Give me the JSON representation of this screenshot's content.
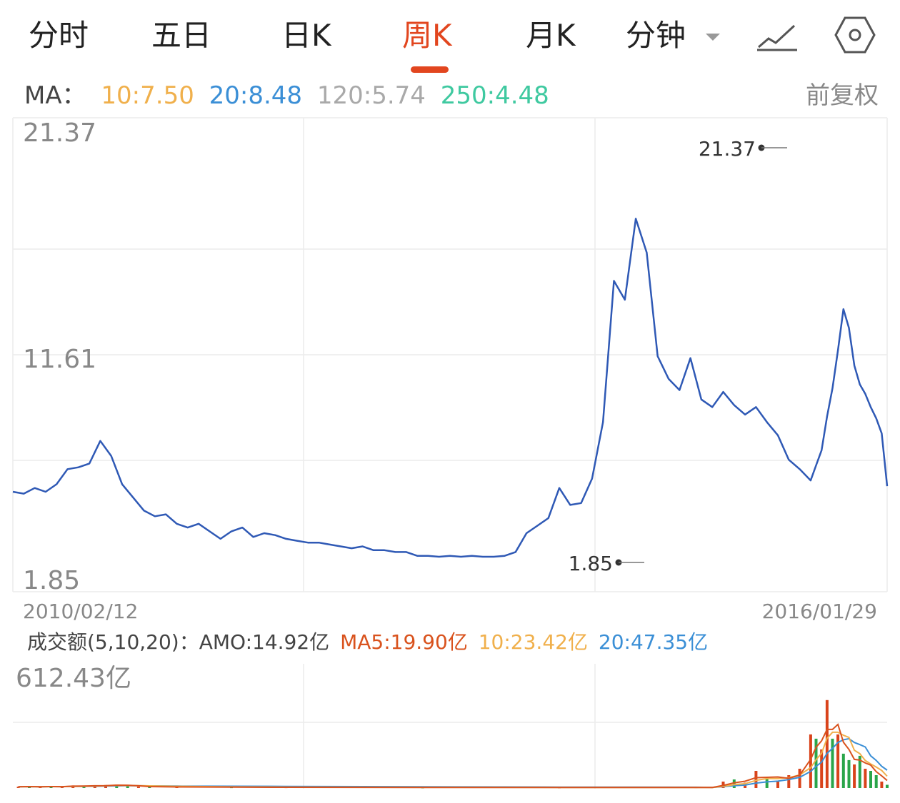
{
  "tabs": [
    {
      "label": "分时",
      "active": false
    },
    {
      "label": "五日",
      "active": false
    },
    {
      "label": "日K",
      "active": false
    },
    {
      "label": "周K",
      "active": true
    },
    {
      "label": "月K",
      "active": false
    },
    {
      "label": "分钟",
      "active": false
    }
  ],
  "icons": [
    "chart-line-icon",
    "settings-hexagon-icon",
    "chevron-down-icon"
  ],
  "ma": {
    "label": "MA：",
    "items": [
      {
        "text": "10:7.50",
        "color": "#f0b04c"
      },
      {
        "text": "20:8.48",
        "color": "#3b8fd6"
      },
      {
        "text": "120:5.74",
        "color": "#a9a9a9"
      },
      {
        "text": "250:4.48",
        "color": "#3fc9a0"
      }
    ],
    "adjust": "前复权"
  },
  "colors": {
    "price_line": "#2f59b5",
    "grid": "#ececec",
    "active": "#e2461f"
  },
  "chart_data": [
    {
      "type": "line",
      "y_ticks": [
        "21.37",
        "11.61",
        "1.85"
      ],
      "ylim": [
        1.85,
        21.37
      ],
      "x_labels": [
        "2010/02/12",
        "2016/01/29"
      ],
      "max_label": "21.37",
      "min_label": "1.85",
      "series": [
        {
          "color": "#2f59b5",
          "x_weeks": [
            0,
            4,
            8,
            12,
            16,
            20,
            24,
            28,
            32,
            36,
            40,
            44,
            48,
            52,
            56,
            60,
            64,
            68,
            72,
            76,
            80,
            84,
            88,
            92,
            96,
            100,
            104,
            108,
            112,
            116,
            120,
            124,
            128,
            132,
            136,
            140,
            144,
            148,
            152,
            156,
            160,
            164,
            168,
            172,
            176,
            180,
            184,
            188,
            192,
            196,
            200,
            204,
            208,
            212,
            216,
            220,
            224,
            228,
            232,
            236,
            240,
            244,
            248,
            252,
            256,
            260,
            264,
            268,
            272,
            276,
            280,
            284,
            288,
            292,
            294,
            296,
            298,
            300,
            302,
            304,
            306,
            308,
            310,
            312,
            314,
            316,
            318,
            320
          ],
          "values": [
            5.3,
            5.2,
            5.5,
            5.3,
            5.7,
            6.5,
            6.6,
            6.8,
            8.0,
            7.2,
            5.7,
            5.0,
            4.3,
            4.0,
            4.1,
            3.6,
            3.4,
            3.6,
            3.2,
            2.8,
            3.2,
            3.4,
            2.9,
            3.1,
            3.0,
            2.8,
            2.7,
            2.6,
            2.6,
            2.5,
            2.4,
            2.3,
            2.4,
            2.2,
            2.2,
            2.1,
            2.1,
            1.9,
            1.9,
            1.85,
            1.9,
            1.85,
            1.9,
            1.85,
            1.85,
            1.9,
            2.1,
            3.1,
            3.5,
            3.9,
            5.5,
            4.6,
            4.7,
            6.0,
            9.0,
            16.5,
            15.5,
            19.8,
            18.0,
            12.5,
            11.3,
            10.7,
            12.4,
            10.2,
            9.8,
            10.6,
            9.9,
            9.4,
            9.8,
            9.0,
            8.3,
            7.0,
            6.5,
            5.9,
            6.7,
            7.5,
            9.3,
            10.8,
            12.8,
            15.0,
            14.0,
            12.0,
            11.0,
            10.5,
            9.8,
            9.2,
            8.4,
            5.6
          ]
        }
      ]
    },
    {
      "type": "bar",
      "label": "成交额(5,10,20)：AMO:14.92亿",
      "ma_labels": [
        {
          "text": "MA5:19.90亿",
          "color": "#d9531e"
        },
        {
          "text": "10:23.42亿",
          "color": "#f0b04c"
        },
        {
          "text": "20:47.35亿",
          "color": "#3b8fd6"
        }
      ],
      "ymax_label": "612.43亿",
      "ylim": [
        0,
        612.43
      ],
      "unit": "亿",
      "series": [
        {
          "name": "AMO",
          "colors": {
            "up": "#d9431b",
            "down": "#2aa54a"
          },
          "x_weeks": [
            2,
            6,
            10,
            14,
            18,
            22,
            26,
            30,
            34,
            38,
            42,
            46,
            50,
            60,
            80,
            100,
            150,
            200,
            250,
            256,
            260,
            264,
            268,
            272,
            276,
            280,
            284,
            288,
            292,
            294,
            296,
            298,
            300,
            302,
            304,
            306,
            308,
            310,
            312,
            314,
            316,
            318,
            320
          ],
          "values": [
            6,
            7,
            5,
            8,
            6,
            12,
            9,
            10,
            14,
            16,
            9,
            6,
            5,
            4,
            3,
            3,
            2,
            2,
            3,
            3,
            30,
            40,
            25,
            80,
            45,
            30,
            60,
            90,
            250,
            230,
            180,
            410,
            230,
            250,
            160,
            130,
            110,
            150,
            90,
            80,
            60,
            30,
            15
          ],
          "up": [
            1,
            0,
            1,
            0,
            1,
            1,
            0,
            1,
            1,
            0,
            0,
            1,
            0,
            1,
            0,
            1,
            0,
            1,
            1,
            0,
            1,
            0,
            1,
            1,
            0,
            1,
            1,
            1,
            1,
            0,
            1,
            1,
            0,
            1,
            0,
            0,
            1,
            0,
            1,
            0,
            0,
            1,
            0
          ]
        }
      ]
    }
  ]
}
